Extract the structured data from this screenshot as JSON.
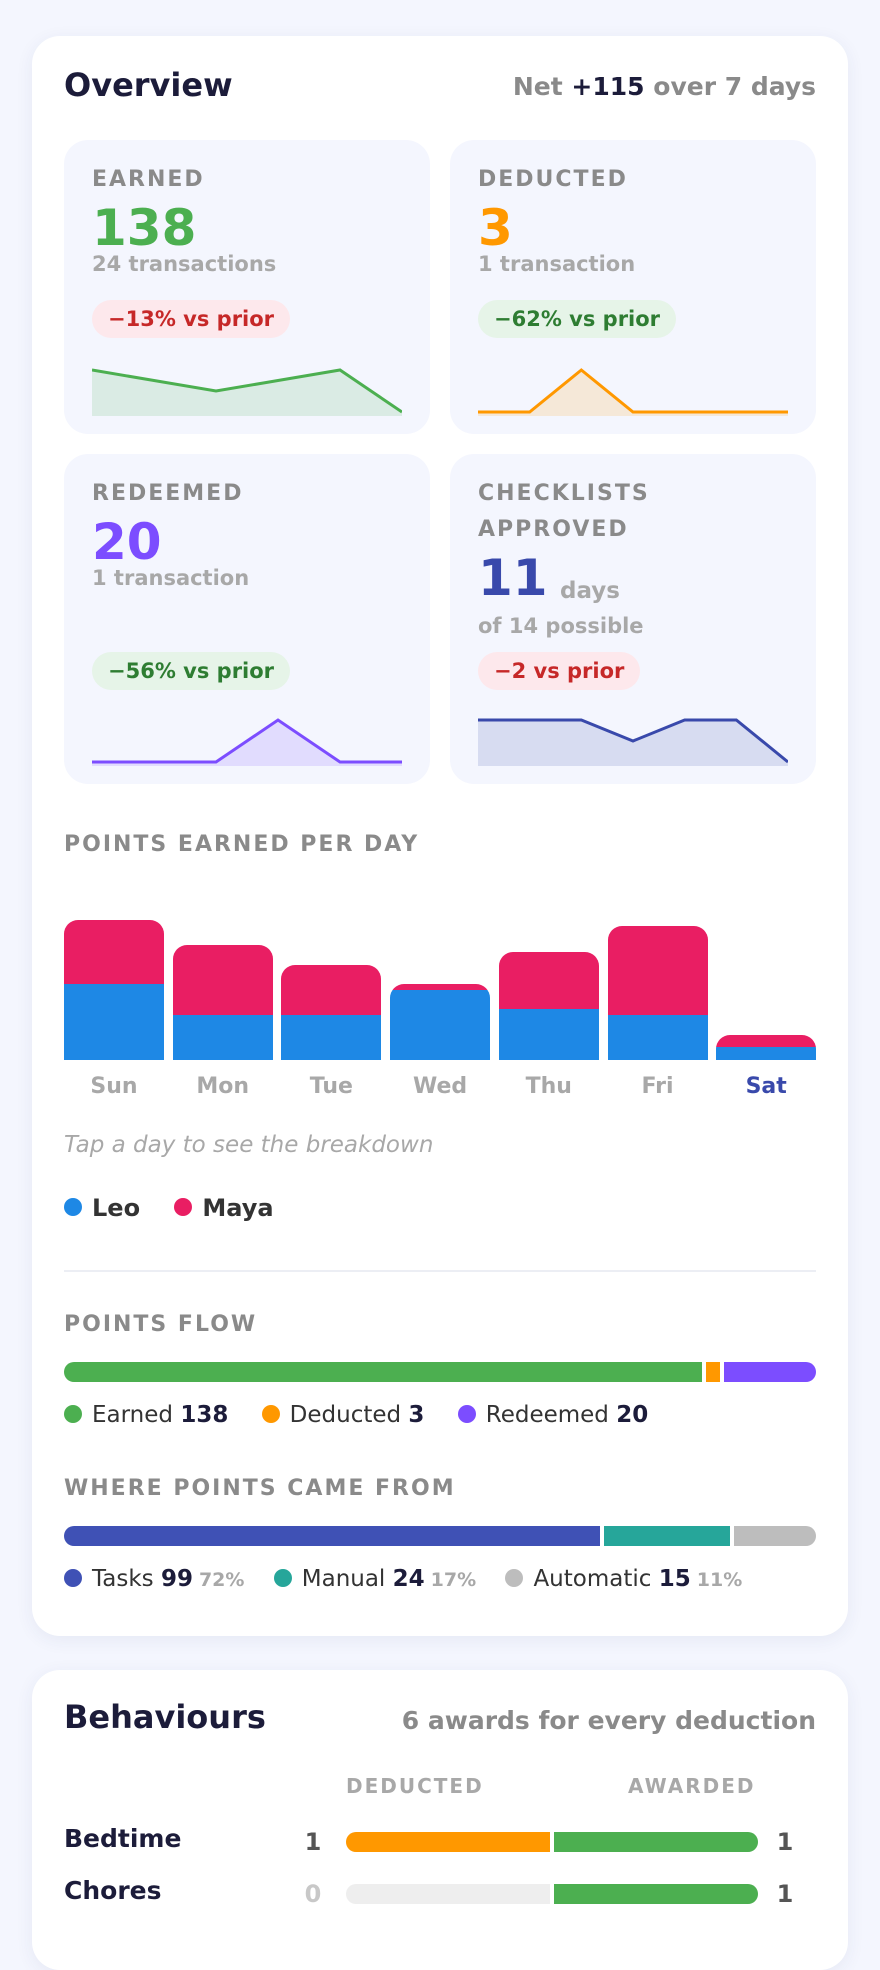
{
  "overview": {
    "title": "Overview",
    "net_prefix": "Net",
    "net_value": "+115",
    "net_suffix": "over 7 days",
    "stats": {
      "earned": {
        "label": "EARNED",
        "value": "138",
        "sub": "24 transactions",
        "change": "−13% vs prior",
        "color": "#4caf50",
        "spark": [
          8,
          6,
          4,
          6,
          8,
          0
        ]
      },
      "deducted": {
        "label": "DEDUCTED",
        "value": "3",
        "sub": "1 transaction",
        "change": "−62% vs prior",
        "color": "#ff9800",
        "spark": [
          0,
          0,
          1,
          0,
          0,
          0,
          0
        ]
      },
      "redeemed": {
        "label": "REDEEMED",
        "value": "20",
        "sub": "1 transaction",
        "change": "−56% vs prior",
        "color": "#7c4dff",
        "spark": [
          0,
          0,
          0,
          1,
          0,
          0
        ]
      },
      "checklists": {
        "label_line1": "CHECKLISTS",
        "label_line2": "APPROVED",
        "value": "11",
        "unit": "days",
        "sub": "of 14 possible",
        "change": "−2 vs prior",
        "color": "#3949ab",
        "spark": [
          2,
          2,
          2,
          1,
          2,
          2,
          0
        ]
      }
    },
    "per_day": {
      "label": "POINTS EARNED PER DAY",
      "hint": "Tap a day to see the breakdown",
      "selected_day": "Sat",
      "legend": [
        {
          "name": "Leo",
          "color": "#1e88e5"
        },
        {
          "name": "Maya",
          "color": "#e91e63"
        }
      ]
    },
    "flow": {
      "label": "POINTS FLOW",
      "items": [
        {
          "name": "Earned",
          "value": "138",
          "color": "#4caf50"
        },
        {
          "name": "Deducted",
          "value": "3",
          "color": "#ff9800"
        },
        {
          "name": "Redeemed",
          "value": "20",
          "color": "#7c4dff"
        }
      ]
    },
    "sources": {
      "label": "WHERE POINTS CAME FROM",
      "items": [
        {
          "name": "Tasks",
          "value": "99",
          "pct": "72%",
          "color": "#3f51b5"
        },
        {
          "name": "Manual",
          "value": "24",
          "pct": "17%",
          "color": "#26a69a"
        },
        {
          "name": "Automatic",
          "value": "15",
          "pct": "11%",
          "color": "#bdbdbd"
        }
      ]
    }
  },
  "chart_data": {
    "type": "bar",
    "stacked": true,
    "categories": [
      "Sun",
      "Mon",
      "Tue",
      "Wed",
      "Thu",
      "Fri",
      "Sat"
    ],
    "series": [
      {
        "name": "Leo",
        "color": "#1e88e5",
        "values": [
          12,
          7,
          7,
          11,
          8,
          7,
          2
        ]
      },
      {
        "name": "Maya",
        "color": "#e91e63",
        "values": [
          10,
          11,
          8,
          1,
          9,
          14,
          2
        ]
      }
    ],
    "ymax": 22
  },
  "behaviours": {
    "title": "Behaviours",
    "summary": "6 awards for every deduction",
    "col_deducted": "DEDUCTED",
    "col_awarded": "AWARDED",
    "rows": [
      {
        "name": "Bedtime",
        "deducted": "1",
        "awarded": "1",
        "deducted_fill": 1.0,
        "awarded_fill": 1.0
      },
      {
        "name": "Chores",
        "deducted": "0",
        "awarded": "1",
        "deducted_fill": 0,
        "awarded_fill": 1.0
      }
    ],
    "deducted_color": "#ff9800",
    "awarded_color": "#4caf50"
  }
}
